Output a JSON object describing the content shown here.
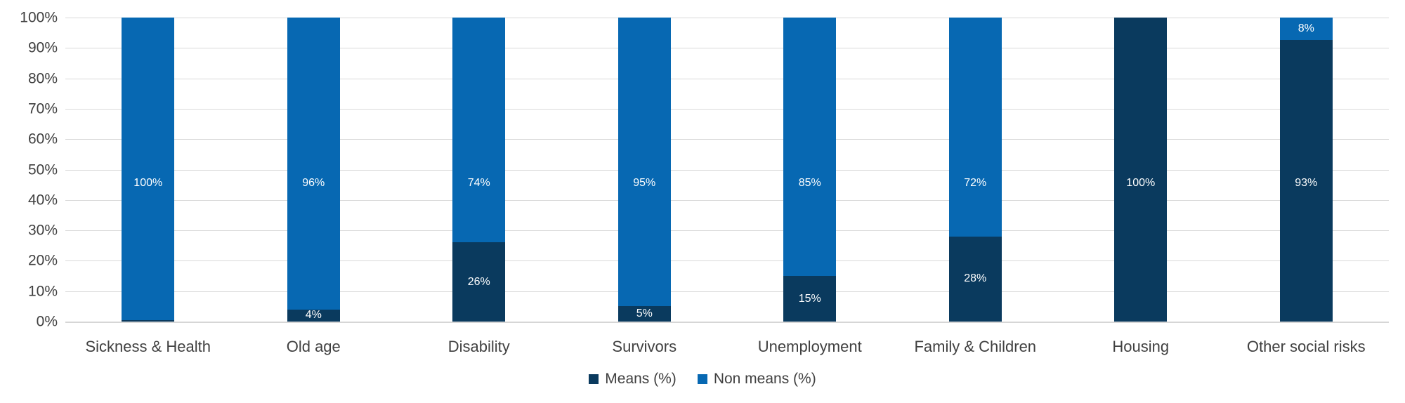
{
  "chart_data": {
    "type": "bar",
    "stacked": true,
    "orientation": "vertical",
    "title": "",
    "categories": [
      "Sickness & Health",
      "Old age",
      "Disability",
      "Survivors",
      "Unemployment",
      "Family & Children",
      "Housing",
      "Other social risks"
    ],
    "series": [
      {
        "name": "Means (%)",
        "color": "#0A3A5E",
        "values": [
          0,
          4,
          26,
          5,
          15,
          28,
          100,
          93
        ],
        "labels": [
          "",
          "4%",
          "26%",
          "5%",
          "15%",
          "28%",
          "100%",
          "93%"
        ],
        "display_values": [
          0.5,
          4,
          26,
          5,
          15,
          28,
          100,
          92.5
        ]
      },
      {
        "name": "Non means (%)",
        "color": "#0768B2",
        "values": [
          100,
          96,
          74,
          95,
          85,
          72,
          0,
          8
        ],
        "labels": [
          "100%",
          "96%",
          "74%",
          "95%",
          "85%",
          "72%",
          "",
          "8%"
        ],
        "display_values": [
          99.5,
          96,
          74,
          95,
          85,
          72,
          0,
          7.5
        ]
      }
    ],
    "y_axis": {
      "min": 0,
      "max": 100,
      "step": 10,
      "tick_labels": [
        "0%",
        "10%",
        "20%",
        "30%",
        "40%",
        "50%",
        "60%",
        "70%",
        "80%",
        "90%",
        "100%"
      ],
      "grid": true
    },
    "legend": {
      "position": "bottom",
      "items": [
        {
          "label": "Means (%)",
          "color": "#0A3A5E"
        },
        {
          "label": "Non means (%)",
          "color": "#0768B2"
        }
      ]
    },
    "colors": {
      "gridline": "#D9D9D9",
      "axis_text": "#404040",
      "bar_label_text": "#FFFFFF",
      "background": "#FFFFFF"
    }
  }
}
